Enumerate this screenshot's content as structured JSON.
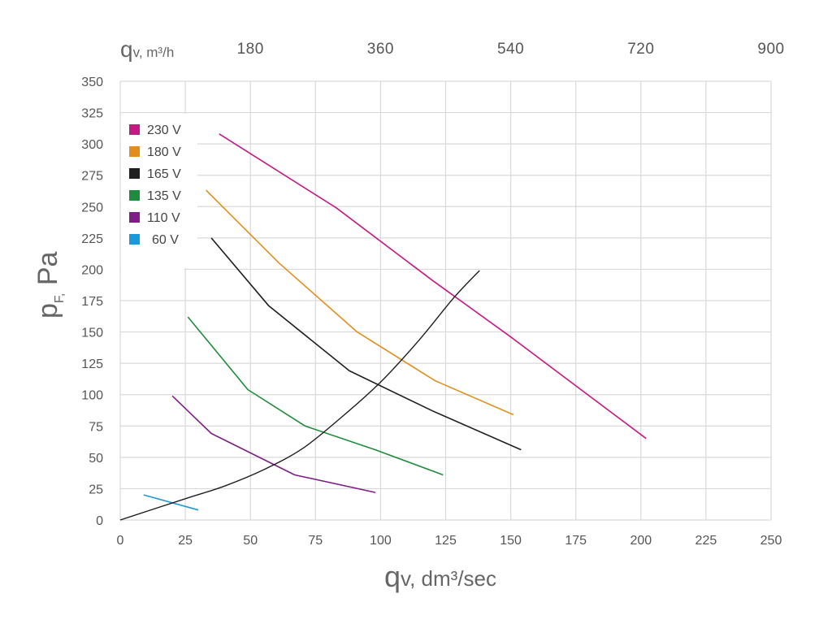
{
  "chart_data": {
    "type": "line",
    "x_label": {
      "symbol": "q",
      "subscript": "v",
      "unit": ", dm³/sec"
    },
    "y_label": {
      "symbol": "p",
      "subscript": "F,",
      "unit": " Pa"
    },
    "top_label": {
      "symbol": "q",
      "subscript": "v",
      "unit": ", m³/h"
    },
    "xlim": [
      0,
      250
    ],
    "ylim": [
      0,
      350
    ],
    "x_ticks": [
      0,
      25,
      50,
      75,
      100,
      125,
      150,
      175,
      200,
      225,
      250
    ],
    "y_ticks": [
      0,
      25,
      50,
      75,
      100,
      125,
      150,
      175,
      200,
      225,
      250,
      275,
      300,
      325,
      350
    ],
    "top_ticks": [
      180,
      360,
      540,
      720,
      900
    ],
    "grid": true,
    "legend_position": "top-left",
    "series": [
      {
        "name": "230 V",
        "color": "#c41882",
        "points": [
          [
            38,
            308
          ],
          [
            83,
            249
          ],
          [
            120,
            191
          ],
          [
            150,
            146
          ],
          [
            202,
            65
          ]
        ]
      },
      {
        "name": "180 V",
        "color": "#e08f1f",
        "points": [
          [
            33,
            263
          ],
          [
            61,
            205
          ],
          [
            91,
            150
          ],
          [
            121,
            111
          ],
          [
            151,
            84
          ]
        ]
      },
      {
        "name": "165 V",
        "color": "#1e1e1e",
        "points": [
          [
            35,
            225
          ],
          [
            57,
            171
          ],
          [
            88,
            119
          ],
          [
            120,
            87
          ],
          [
            154,
            56
          ]
        ]
      },
      {
        "name": "135 V",
        "color": "#1e8c3c",
        "points": [
          [
            26,
            162
          ],
          [
            49,
            104
          ],
          [
            71,
            75
          ],
          [
            98,
            56
          ],
          [
            124,
            36
          ]
        ]
      },
      {
        "name": "110 V",
        "color": "#7e1e86",
        "points": [
          [
            20,
            99
          ],
          [
            35,
            69
          ],
          [
            67,
            36
          ],
          [
            98,
            22
          ]
        ]
      },
      {
        "name": "60 V",
        "color": "#1a9ad9",
        "points": [
          [
            9,
            20
          ],
          [
            30,
            8
          ]
        ]
      }
    ],
    "system_curve": {
      "color": "#1e1e1e",
      "points": [
        [
          0,
          0
        ],
        [
          25,
          17
        ],
        [
          40,
          27
        ],
        [
          55,
          40
        ],
        [
          70,
          57
        ],
        [
          85,
          82
        ],
        [
          100,
          110
        ],
        [
          115,
          144
        ],
        [
          128,
          177
        ],
        [
          138,
          199
        ]
      ]
    }
  }
}
